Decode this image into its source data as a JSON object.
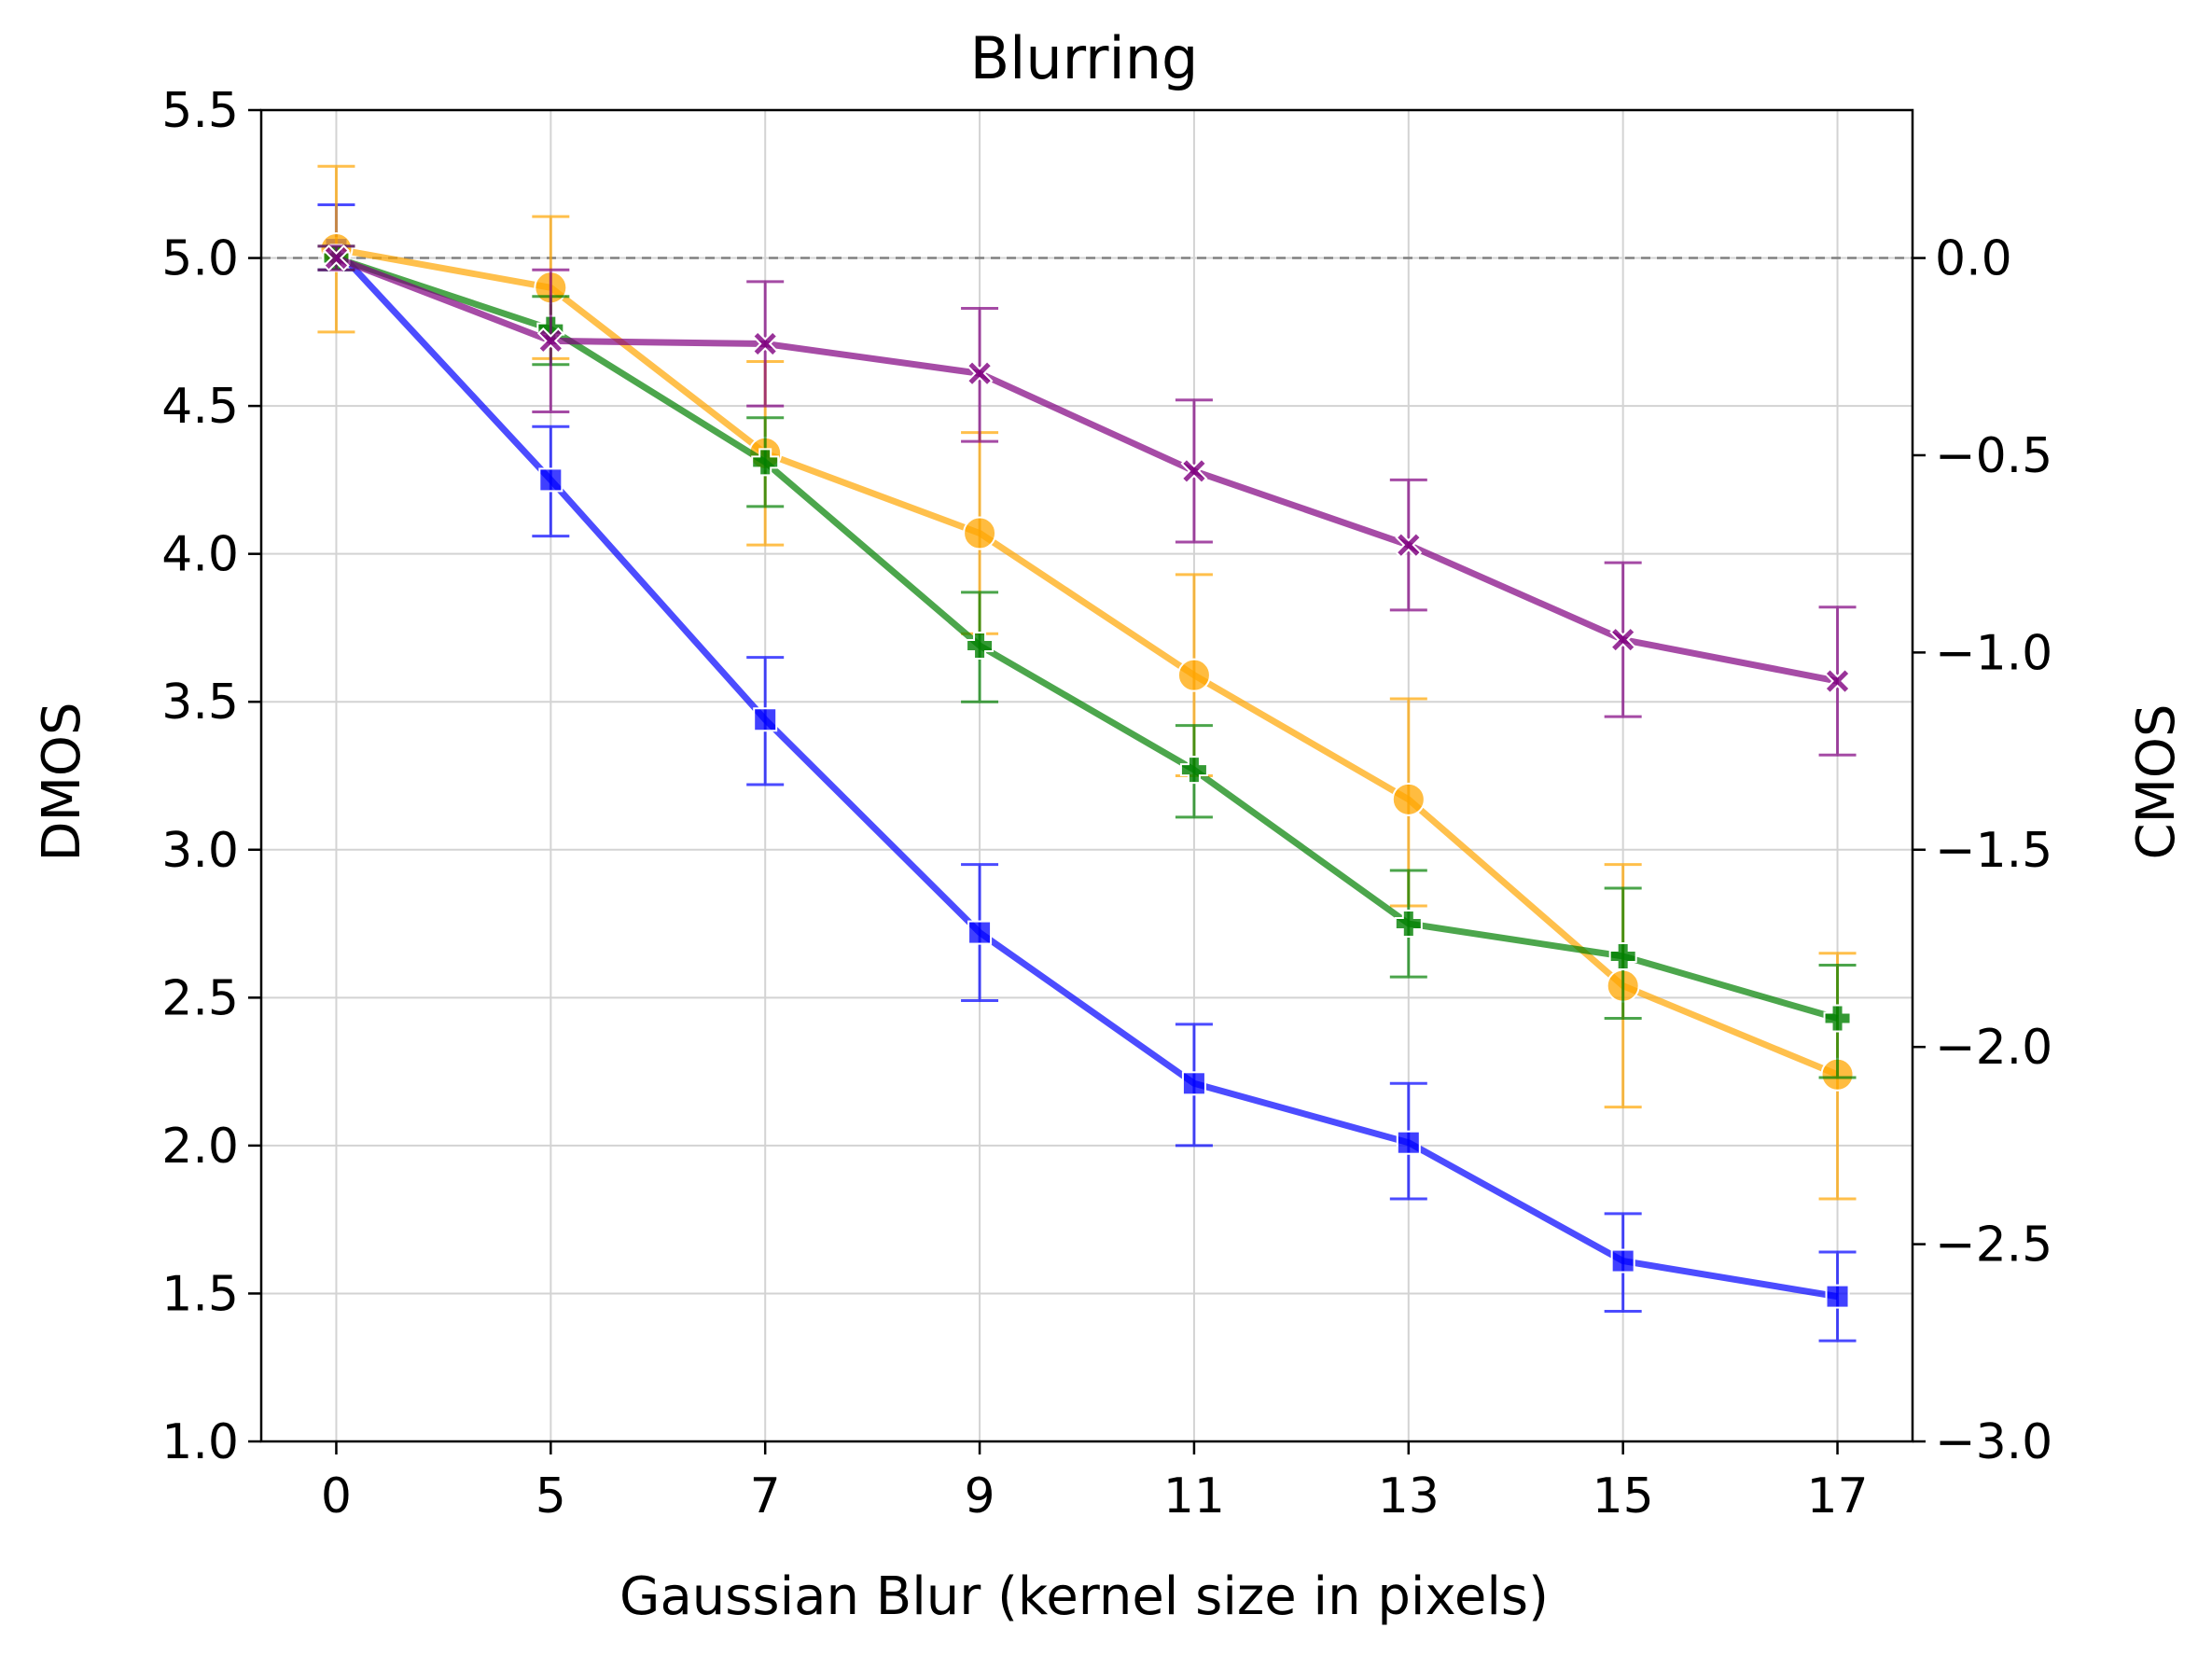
{
  "chart_data": {
    "type": "line",
    "title": "Blurring",
    "xlabel": "Gaussian Blur (kernel size in pixels)",
    "ylabel": "DMOS",
    "ylabel_right": "CMOS",
    "categories": [
      "0",
      "5",
      "7",
      "9",
      "11",
      "13",
      "15",
      "17"
    ],
    "ylim": [
      1.0,
      5.5
    ],
    "yticks": [
      "1.0",
      "1.5",
      "2.0",
      "2.5",
      "3.0",
      "3.5",
      "4.0",
      "4.5",
      "5.0",
      "5.5"
    ],
    "ylim_right": [
      -3.0,
      0.375
    ],
    "yticks_right": [
      "0.0",
      "−0.5",
      "−1.0",
      "−1.5",
      "−2.0",
      "−2.5",
      "−3.0"
    ],
    "yticks_right_values": [
      0.0,
      -0.5,
      -1.0,
      -1.5,
      -2.0,
      -2.5,
      -3.0
    ],
    "reference_line": 5.0,
    "grid": true,
    "series": [
      {
        "color": "#0000ff",
        "marker": "square",
        "values": [
          5.03,
          4.25,
          3.44,
          2.72,
          2.21,
          2.01,
          1.61,
          1.49
        ],
        "err_low": [
          4.96,
          4.06,
          3.22,
          2.49,
          2.0,
          1.82,
          1.44,
          1.34
        ],
        "err_high": [
          5.18,
          4.43,
          3.65,
          2.95,
          2.41,
          2.21,
          1.77,
          1.64
        ]
      },
      {
        "color": "#ffa500",
        "marker": "circle",
        "values": [
          5.03,
          4.9,
          4.34,
          4.07,
          3.59,
          3.17,
          2.54,
          2.24
        ],
        "err_low": [
          4.75,
          4.66,
          4.03,
          3.73,
          3.25,
          2.81,
          2.13,
          1.82
        ],
        "err_high": [
          5.31,
          5.14,
          4.65,
          4.41,
          3.93,
          3.51,
          2.95,
          2.65
        ]
      },
      {
        "color": "#008000",
        "marker": "plus",
        "values": [
          5.0,
          4.76,
          4.31,
          3.69,
          3.27,
          2.75,
          2.64,
          2.43
        ],
        "err_low": [
          4.96,
          4.64,
          4.16,
          3.5,
          3.11,
          2.57,
          2.43,
          2.23
        ],
        "err_high": [
          5.04,
          4.87,
          4.46,
          3.87,
          3.42,
          2.93,
          2.87,
          2.61
        ]
      },
      {
        "color": "#800080",
        "marker": "x",
        "values": [
          5.0,
          4.72,
          4.71,
          4.61,
          4.28,
          4.03,
          3.71,
          3.57
        ],
        "err_low": [
          4.96,
          4.48,
          4.5,
          4.38,
          4.04,
          3.81,
          3.45,
          3.32
        ],
        "err_high": [
          5.04,
          4.96,
          4.92,
          4.83,
          4.52,
          4.25,
          3.97,
          3.82
        ]
      }
    ]
  }
}
